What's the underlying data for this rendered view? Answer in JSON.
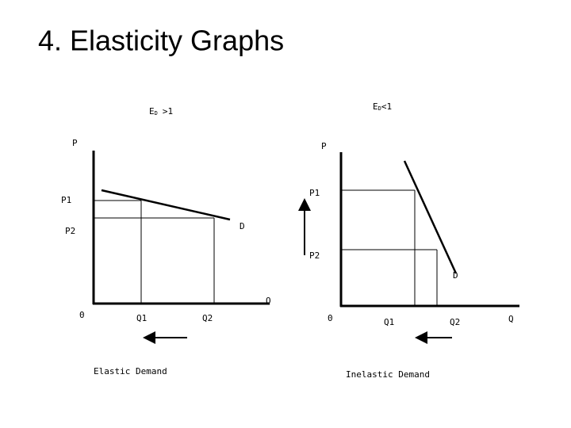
{
  "title": "4.  Elasticity Graphs",
  "left": {
    "heading": {
      "main": "E",
      "sub": "D",
      "rest": ">1"
    },
    "y_label": "P",
    "p1": "P1",
    "p2": "P2",
    "demand": "D",
    "x_label": "Q",
    "origin": "0",
    "q1": "Q1",
    "q2": "Q2",
    "caption": "Elastic Demand"
  },
  "right": {
    "heading": {
      "main": "E",
      "sub": "D",
      "rest": "<1"
    },
    "y_label": "P",
    "p1": "P1",
    "p2": "P2",
    "demand": "D",
    "x_label": "Q",
    "origin": "0",
    "q1": "Q1",
    "q2": "Q2",
    "caption": "Inelastic Demand"
  }
}
